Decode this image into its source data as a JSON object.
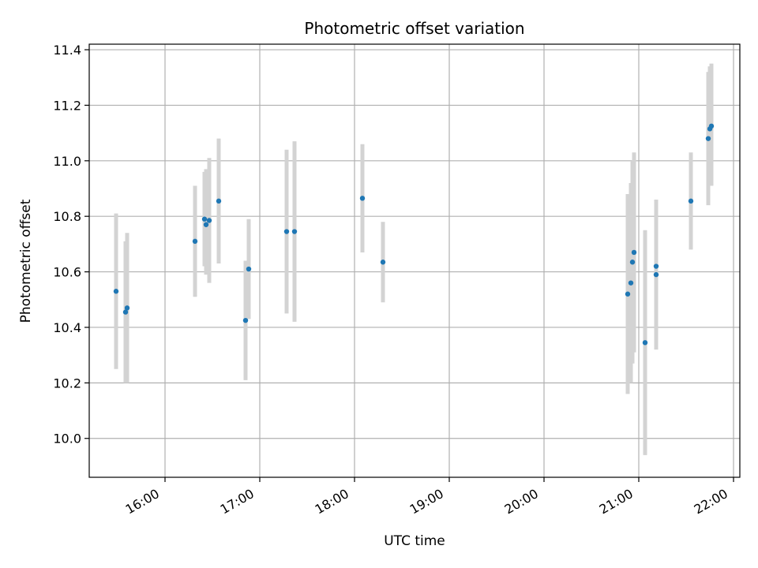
{
  "chart_data": {
    "type": "scatter",
    "title": "Photometric offset variation",
    "xlabel": "UTC time",
    "ylabel": "Photometric offset",
    "x_axis": "time",
    "xlim": [
      "15:12",
      "22:04"
    ],
    "ylim": [
      9.86,
      11.42
    ],
    "grid": true,
    "x_ticks": [
      "16:00",
      "17:00",
      "18:00",
      "19:00",
      "20:00",
      "21:00",
      "22:00"
    ],
    "y_ticks": [
      "10.0",
      "10.2",
      "10.4",
      "10.6",
      "10.8",
      "11.0",
      "11.2",
      "11.4"
    ],
    "colors": {
      "points": "#1f77b4",
      "errorbars": "#d3d3d3",
      "grid": "#b0b0b0"
    },
    "points": [
      {
        "time": "15:29",
        "y": 10.53,
        "err_low": 10.25,
        "err_high": 10.81
      },
      {
        "time": "15:35",
        "y": 10.455,
        "err_low": 10.2,
        "err_high": 10.71
      },
      {
        "time": "15:36",
        "y": 10.47,
        "err_low": 10.2,
        "err_high": 10.74
      },
      {
        "time": "16:19",
        "y": 10.71,
        "err_low": 10.51,
        "err_high": 10.91
      },
      {
        "time": "16:25",
        "y": 10.79,
        "err_low": 10.62,
        "err_high": 10.96
      },
      {
        "time": "16:26",
        "y": 10.77,
        "err_low": 10.59,
        "err_high": 10.97
      },
      {
        "time": "16:28",
        "y": 10.785,
        "err_low": 10.56,
        "err_high": 11.01
      },
      {
        "time": "16:34",
        "y": 10.855,
        "err_low": 10.63,
        "err_high": 11.08
      },
      {
        "time": "16:51",
        "y": 10.425,
        "err_low": 10.21,
        "err_high": 10.64
      },
      {
        "time": "16:53",
        "y": 10.61,
        "err_low": 10.43,
        "err_high": 10.79
      },
      {
        "time": "17:17",
        "y": 10.745,
        "err_low": 10.45,
        "err_high": 11.04
      },
      {
        "time": "17:22",
        "y": 10.745,
        "err_low": 10.42,
        "err_high": 11.07
      },
      {
        "time": "18:05",
        "y": 10.865,
        "err_low": 10.67,
        "err_high": 11.06
      },
      {
        "time": "18:18",
        "y": 10.635,
        "err_low": 10.49,
        "err_high": 10.78
      },
      {
        "time": "20:53",
        "y": 10.52,
        "err_low": 10.16,
        "err_high": 10.88
      },
      {
        "time": "20:55",
        "y": 10.56,
        "err_low": 10.2,
        "err_high": 10.92
      },
      {
        "time": "20:56",
        "y": 10.635,
        "err_low": 10.27,
        "err_high": 11.0
      },
      {
        "time": "20:57",
        "y": 10.67,
        "err_low": 10.31,
        "err_high": 11.03
      },
      {
        "time": "21:04",
        "y": 10.345,
        "err_low": 9.94,
        "err_high": 10.75
      },
      {
        "time": "21:11",
        "y": 10.59,
        "err_low": 10.32,
        "err_high": 10.86
      },
      {
        "time": "21:11",
        "y": 10.62,
        "err_low": 10.38,
        "err_high": 10.86
      },
      {
        "time": "21:33",
        "y": 10.855,
        "err_low": 10.68,
        "err_high": 11.03
      },
      {
        "time": "21:44",
        "y": 11.08,
        "err_low": 10.84,
        "err_high": 11.32
      },
      {
        "time": "21:45",
        "y": 11.115,
        "err_low": 10.91,
        "err_high": 11.34
      },
      {
        "time": "21:46",
        "y": 11.125,
        "err_low": 10.91,
        "err_high": 11.35
      }
    ]
  }
}
